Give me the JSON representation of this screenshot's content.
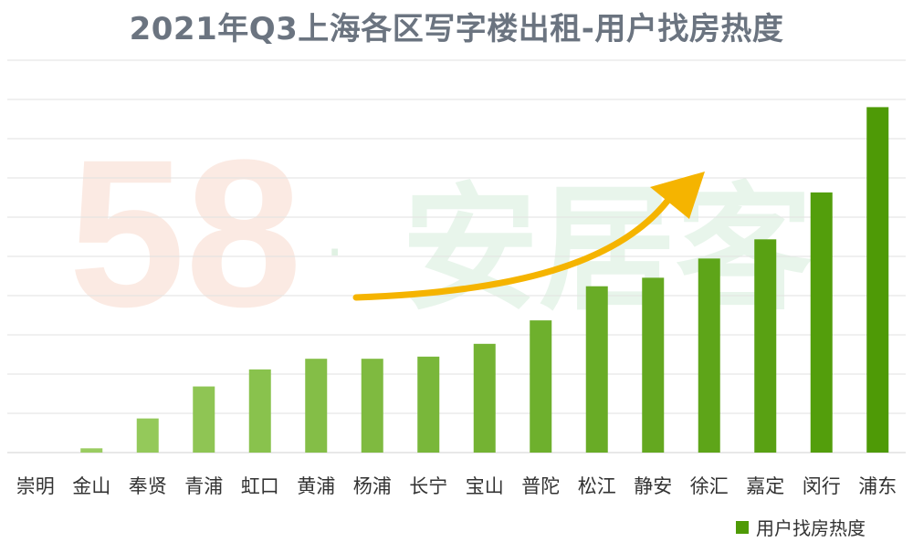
{
  "title": "2021年Q3上海各区写字楼出租-用户找房热度",
  "watermark": {
    "digits": "58",
    "dot": "·",
    "brand": "安居客"
  },
  "colors": {
    "bar_light": "#9fd067",
    "bar_dark": "#4e9a06",
    "grid": "#e2e2e2",
    "arrow": "#f5b400",
    "title": "#6b7480"
  },
  "chart_data": {
    "type": "bar",
    "title": "2021年Q3上海各区写字楼出租-用户找房热度",
    "categories": [
      "崇明",
      "金山",
      "奉贤",
      "青浦",
      "虹口",
      "黄浦",
      "杨浦",
      "长宁",
      "宝山",
      "普陀",
      "松江",
      "静安",
      "徐汇",
      "嘉定",
      "闵行",
      "浦东"
    ],
    "series": [
      {
        "name": "用户找房热度",
        "values": [
          0,
          1,
          8,
          15.5,
          19.5,
          22,
          22,
          22.5,
          25.5,
          31,
          39,
          41,
          45.5,
          50,
          61,
          81
        ]
      }
    ],
    "ylim": [
      0,
      92
    ],
    "gridlines": 10,
    "grid": true,
    "y_tick_labels_shown": false,
    "legend_position": "bottom-right"
  }
}
